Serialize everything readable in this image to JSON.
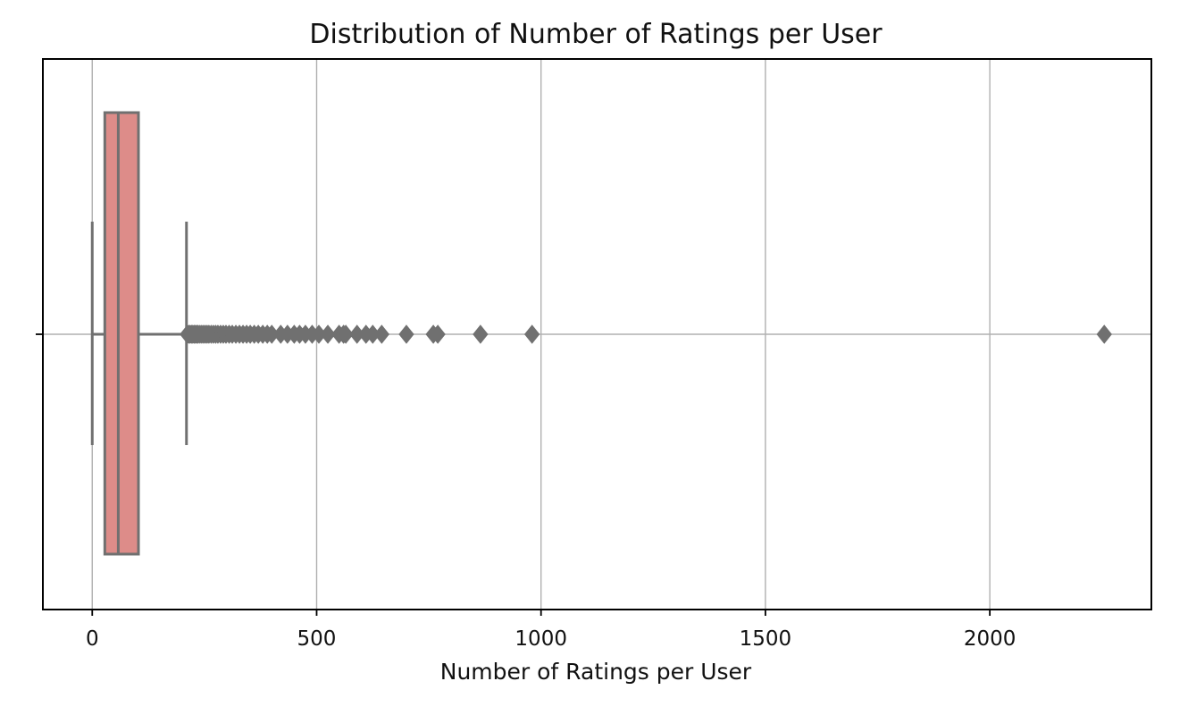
{
  "chart_data": {
    "type": "box",
    "title": "Distribution of Number of Ratings per User",
    "xlabel": "Number of Ratings per User",
    "ylabel": "",
    "orientation": "horizontal",
    "xlim": [
      -110,
      2360
    ],
    "x_ticks": [
      0,
      500,
      1000,
      1500,
      2000
    ],
    "x_tick_labels": [
      "0",
      "500",
      "1000",
      "1500",
      "2000"
    ],
    "grid": true,
    "colors": {
      "box_fill": "#dd8c89",
      "box_edge": "#707070",
      "whisker": "#707070",
      "grid": "#b0b0b0",
      "axes": "#000000",
      "text": "#111111"
    },
    "box": {
      "min": 0,
      "q1": 28,
      "median": 58,
      "q3": 103,
      "max": 210
    },
    "outliers": [
      212,
      215,
      218,
      221,
      224,
      227,
      230,
      233,
      236,
      240,
      244,
      248,
      252,
      256,
      260,
      265,
      270,
      275,
      280,
      286,
      292,
      298,
      305,
      312,
      320,
      328,
      336,
      344,
      352,
      361,
      370,
      380,
      390,
      400,
      420,
      435,
      450,
      462,
      475,
      490,
      505,
      525,
      550,
      560,
      565,
      590,
      610,
      625,
      645,
      700,
      760,
      770,
      865,
      980,
      2255
    ]
  }
}
